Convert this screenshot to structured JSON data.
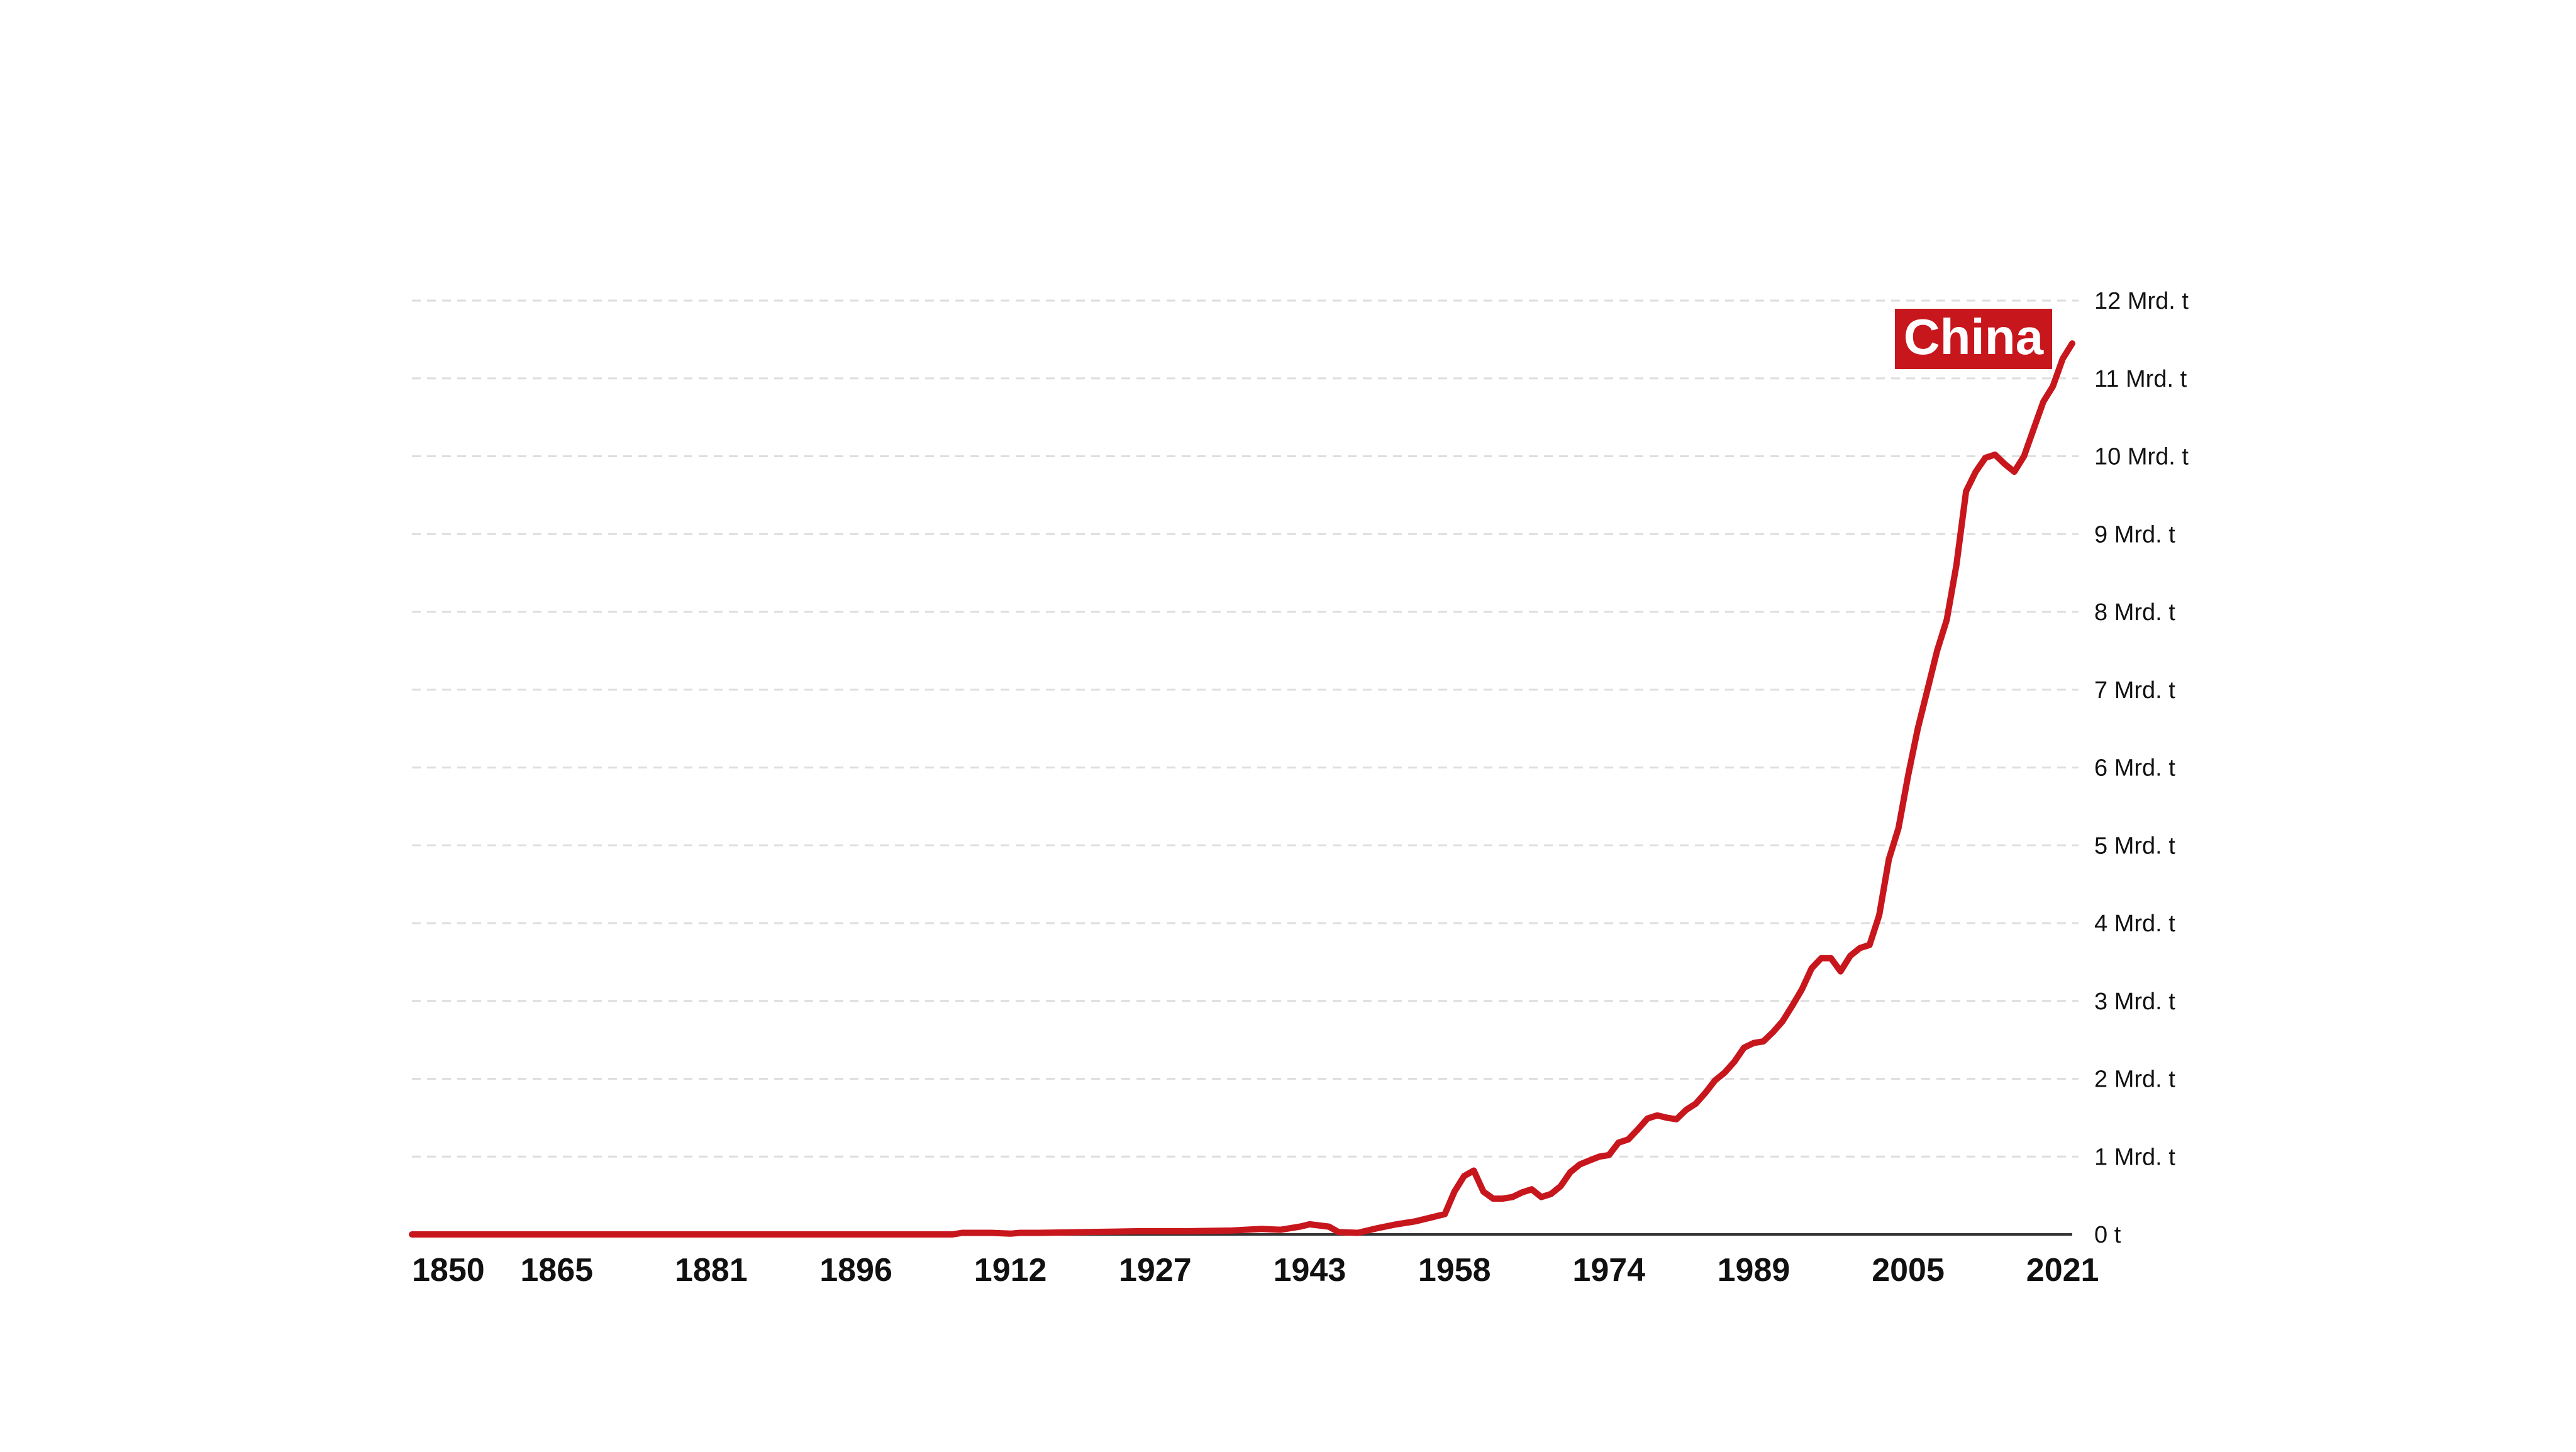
{
  "chart_data": {
    "type": "line",
    "title": "",
    "xlabel": "",
    "ylabel": "",
    "x_ticks": [
      "1850",
      "1865",
      "1881",
      "1896",
      "1912",
      "1927",
      "1943",
      "1958",
      "1974",
      "1989",
      "2005",
      "2021"
    ],
    "y_ticks": [
      "0 t",
      "1 Mrd. t",
      "2 Mrd. t",
      "3 Mrd. t",
      "4 Mrd. t",
      "5 Mrd. t",
      "6 Mrd. t",
      "7 Mrd. t",
      "8 Mrd. t",
      "9 Mrd. t",
      "10 Mrd. t",
      "11 Mrd. t",
      "12 Mrd. t"
    ],
    "xlim": [
      1850,
      2022
    ],
    "ylim": [
      0,
      12
    ],
    "grid": "horizontal dashed",
    "colors": {
      "line": "#c8161d",
      "label_bg": "#c8161d",
      "grid": "#dedede",
      "axis": "#333333"
    },
    "series": [
      {
        "name": "China",
        "x": [
          1850,
          1880,
          1900,
          1906,
          1907,
          1910,
          1912,
          1913,
          1915,
          1920,
          1925,
          1930,
          1935,
          1938,
          1940,
          1942,
          1943,
          1945,
          1946,
          1948,
          1950,
          1952,
          1954,
          1956,
          1957,
          1958,
          1959,
          1960,
          1961,
          1962,
          1963,
          1964,
          1965,
          1966,
          1967,
          1968,
          1969,
          1970,
          1971,
          1972,
          1973,
          1974,
          1975,
          1976,
          1977,
          1978,
          1979,
          1980,
          1981,
          1982,
          1983,
          1984,
          1985,
          1986,
          1987,
          1988,
          1989,
          1990,
          1991,
          1992,
          1993,
          1994,
          1995,
          1996,
          1997,
          1998,
          1999,
          2000,
          2001,
          2002,
          2003,
          2004,
          2005,
          2006,
          2007,
          2008,
          2009,
          2010,
          2011,
          2012,
          2013,
          2014,
          2015,
          2016,
          2017,
          2018,
          2019,
          2020,
          2021,
          2022
        ],
        "y": [
          0.0,
          0.0,
          0.0,
          0.0,
          0.02,
          0.02,
          0.01,
          0.02,
          0.02,
          0.03,
          0.04,
          0.04,
          0.05,
          0.07,
          0.06,
          0.1,
          0.13,
          0.1,
          0.03,
          0.02,
          0.08,
          0.13,
          0.17,
          0.23,
          0.26,
          0.55,
          0.75,
          0.82,
          0.55,
          0.46,
          0.46,
          0.48,
          0.54,
          0.58,
          0.48,
          0.52,
          0.62,
          0.8,
          0.9,
          0.95,
          1.0,
          1.02,
          1.18,
          1.22,
          1.35,
          1.49,
          1.53,
          1.5,
          1.48,
          1.6,
          1.68,
          1.82,
          1.98,
          2.08,
          2.22,
          2.4,
          2.46,
          2.48,
          2.6,
          2.74,
          2.94,
          3.15,
          3.42,
          3.55,
          3.55,
          3.38,
          3.58,
          3.68,
          3.72,
          4.1,
          4.82,
          5.22,
          5.9,
          6.5,
          7.0,
          7.5,
          7.9,
          8.6,
          9.55,
          9.8,
          9.98,
          10.02,
          9.9,
          9.8,
          10.0,
          10.35,
          10.7,
          10.9,
          11.25,
          11.45
        ]
      }
    ],
    "series_label": "China"
  }
}
